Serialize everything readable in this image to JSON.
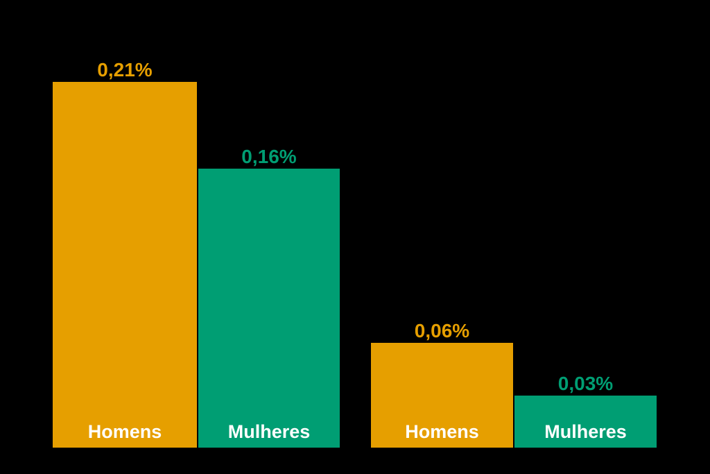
{
  "chart_data": {
    "type": "bar",
    "title": "",
    "xlabel": "",
    "ylabel": "",
    "unit": "%",
    "decimal_separator": ",",
    "ylim": [
      0,
      0.21
    ],
    "grid": false,
    "legend_position": "none",
    "series": [
      {
        "name": "Homens",
        "color": "#E69F00",
        "values": [
          0.21,
          0.06
        ]
      },
      {
        "name": "Mulheres",
        "color": "#009E73",
        "values": [
          0.16,
          0.03
        ]
      }
    ],
    "groups": [
      {
        "bars": [
          {
            "label": "Homens",
            "value_label": "0,21%",
            "value_num": 0.21,
            "color": "#E69F00"
          },
          {
            "label": "Mulheres",
            "value_label": "0,16%",
            "value_num": 0.16,
            "color": "#009E73"
          }
        ]
      },
      {
        "bars": [
          {
            "label": "Homens",
            "value_label": "0,06%",
            "value_num": 0.06,
            "color": "#E69F00"
          },
          {
            "label": "Mulheres",
            "value_label": "0,03%",
            "value_num": 0.03,
            "color": "#009E73"
          }
        ]
      }
    ],
    "colors": {
      "homens_bar": "#E69F00",
      "mulheres_bar": "#009E73",
      "category_label_text": "#FFFFFF",
      "background": "#000000"
    }
  }
}
